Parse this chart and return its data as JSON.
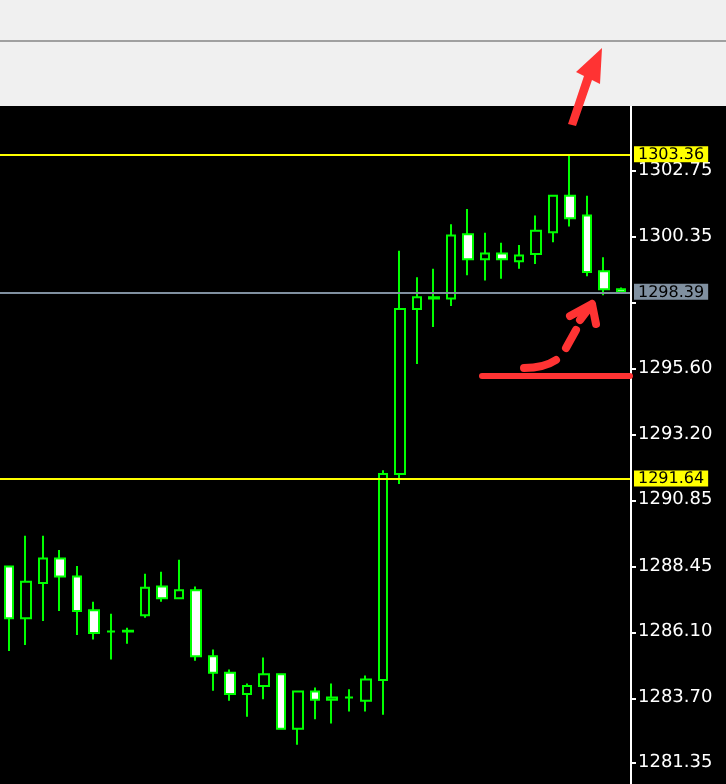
{
  "chart_data": {
    "type": "candlestick",
    "categories": [
      null,
      null,
      null,
      null,
      null,
      null,
      null,
      null,
      null,
      null,
      null,
      null,
      null,
      null,
      null,
      null,
      null,
      null,
      null,
      null,
      null,
      null,
      null,
      null,
      null,
      null,
      null,
      null,
      null,
      null,
      null,
      null,
      null,
      null,
      null,
      null,
      null
    ],
    "series": [
      {
        "color": "#00ff00",
        "ohlc": [
          [
            1288.46,
            1288.46,
            1285.41,
            1286.59
          ],
          [
            1286.59,
            1289.57,
            1285.62,
            1287.91
          ],
          [
            1287.86,
            1289.57,
            1286.49,
            1288.75
          ],
          [
            1288.75,
            1289.06,
            1286.85,
            1288.1
          ],
          [
            1288.1,
            1288.48,
            1285.98,
            1286.85
          ],
          [
            1286.88,
            1287.19,
            1285.82,
            1286.06
          ],
          [
            1286.11,
            1286.75,
            1285.1,
            1286.11
          ],
          [
            1286.14,
            1286.25,
            1285.67,
            1286.11
          ],
          [
            1286.7,
            1288.2,
            1286.61,
            1287.69
          ],
          [
            1287.74,
            1288.27,
            1287.19,
            1287.31
          ],
          [
            1287.31,
            1288.7,
            1287.31,
            1287.6
          ],
          [
            1287.6,
            1287.74,
            1285.05,
            1285.22
          ],
          [
            1285.22,
            1285.46,
            1283.97,
            1284.62
          ],
          [
            1284.62,
            1284.74,
            1283.61,
            1283.85
          ],
          [
            1283.85,
            1284.23,
            1283.03,
            1284.14
          ],
          [
            1284.14,
            1285.17,
            1283.66,
            1284.57
          ],
          [
            1284.57,
            1284.57,
            1282.6,
            1282.6
          ],
          [
            1282.6,
            1283.94,
            1282.02,
            1283.94
          ],
          [
            1283.94,
            1284.09,
            1282.94,
            1283.64
          ],
          [
            1283.64,
            1284.23,
            1282.79,
            1283.73
          ],
          [
            1283.73,
            1284.02,
            1283.22,
            1283.73
          ],
          [
            1283.61,
            1284.52,
            1283.22,
            1284.38
          ],
          [
            1284.36,
            1291.94,
            1283.1,
            1291.8
          ],
          [
            1291.8,
            1299.87,
            1291.44,
            1297.76
          ],
          [
            1297.76,
            1298.91,
            1295.78,
            1298.19
          ],
          [
            1298.19,
            1299.22,
            1297.11,
            1298.14
          ],
          [
            1298.14,
            1300.83,
            1297.87,
            1300.42
          ],
          [
            1300.47,
            1301.38,
            1298.98,
            1299.56
          ],
          [
            1299.56,
            1300.52,
            1298.79,
            1299.77
          ],
          [
            1299.77,
            1300.16,
            1298.86,
            1299.56
          ],
          [
            1299.49,
            1300.08,
            1299.22,
            1299.7
          ],
          [
            1299.75,
            1301.14,
            1299.39,
            1300.59
          ],
          [
            1300.54,
            1301.86,
            1300.18,
            1301.86
          ],
          [
            1301.86,
            1303.36,
            1300.75,
            1301.04
          ],
          [
            1301.14,
            1301.86,
            1298.95,
            1299.1
          ],
          [
            1299.13,
            1299.63,
            1298.26,
            1298.48
          ],
          [
            1298.48,
            1298.54,
            1298.34,
            1298.39
          ]
        ]
      }
    ],
    "ylim": [
      1280.6,
      1305.1
    ],
    "yticks": [
      1302.75,
      1300.35,
      {
        "value": 1298.0,
        "label": null
      },
      {
        "value": 1295.6,
        "label": "1295.60"
      },
      {
        "value": 1293.2,
        "label": "1293.20"
      },
      1290.85,
      1288.45,
      {
        "value": 1286.1,
        "label": "1286.10"
      },
      {
        "value": 1283.7,
        "label": "1283.70"
      },
      1281.35
    ],
    "tick_labels": "y",
    "grid": false,
    "ref_lines": [
      {
        "axis": "y",
        "value": 1303.36,
        "label": "1303.36",
        "color": "#ffff00"
      },
      {
        "axis": "y",
        "value": 1298.39,
        "label": "1298.39",
        "color": "#8090a0"
      },
      {
        "axis": "y",
        "value": 1291.64,
        "label": "1291.64",
        "color": "#ffff00"
      }
    ]
  }
}
